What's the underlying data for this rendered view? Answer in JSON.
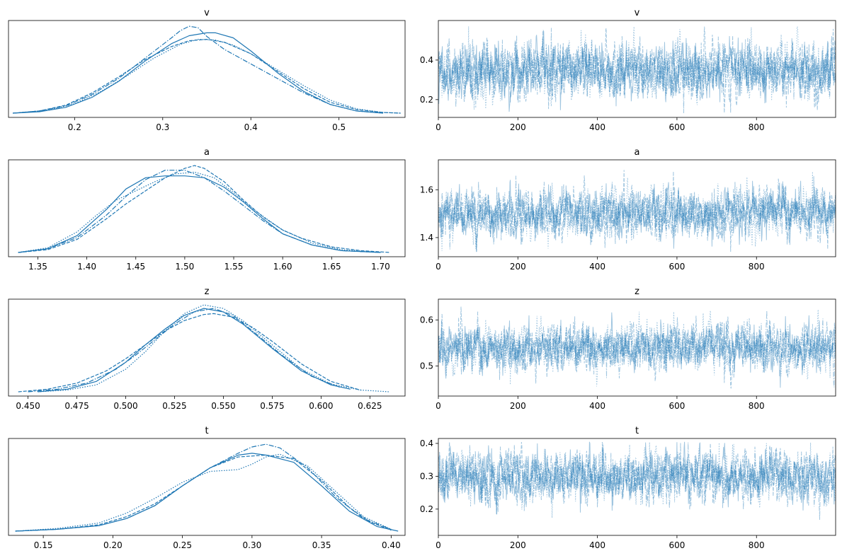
{
  "chart_data": [
    {
      "type": "line",
      "kind": "density",
      "title": "v",
      "xlim": [
        0.125,
        0.575
      ],
      "xticks": [
        "0.2",
        "0.3",
        "0.4",
        "0.5"
      ],
      "yticks_visible": false,
      "color": "#1f77b4",
      "series": [
        {
          "name": "",
          "linestyle": "solid",
          "x": [
            0.13,
            0.16,
            0.19,
            0.22,
            0.25,
            0.28,
            0.31,
            0.33,
            0.35,
            0.36,
            0.38,
            0.4,
            0.43,
            0.46,
            0.49,
            0.52,
            0.55
          ],
          "y": [
            0.0,
            0.2,
            0.8,
            2.2,
            4.4,
            7.2,
            9.6,
            10.7,
            11.1,
            11.1,
            10.4,
            8.6,
            5.6,
            3.0,
            1.2,
            0.3,
            0.0
          ]
        },
        {
          "name": "",
          "linestyle": "dashed",
          "x": [
            0.13,
            0.16,
            0.19,
            0.22,
            0.25,
            0.28,
            0.31,
            0.33,
            0.35,
            0.37,
            0.4,
            0.43,
            0.46,
            0.49,
            0.52,
            0.55,
            0.57
          ],
          "y": [
            0.0,
            0.3,
            1.1,
            2.8,
            5.0,
            7.4,
            9.2,
            10.0,
            10.2,
            9.8,
            8.2,
            5.8,
            3.4,
            1.5,
            0.5,
            0.1,
            0.0
          ]
        },
        {
          "name": "",
          "linestyle": "dashdot",
          "x": [
            0.13,
            0.16,
            0.19,
            0.22,
            0.25,
            0.28,
            0.31,
            0.32,
            0.33,
            0.34,
            0.35,
            0.37,
            0.4,
            0.43,
            0.46,
            0.49,
            0.52,
            0.55
          ],
          "y": [
            0.0,
            0.3,
            1.0,
            2.6,
            4.8,
            7.6,
            10.4,
            11.4,
            12.0,
            11.8,
            10.6,
            8.8,
            6.8,
            4.8,
            2.8,
            1.2,
            0.3,
            0.0
          ]
        },
        {
          "name": "",
          "linestyle": "dotted",
          "x": [
            0.14,
            0.17,
            0.2,
            0.23,
            0.26,
            0.29,
            0.32,
            0.34,
            0.36,
            0.38,
            0.4,
            0.43,
            0.46,
            0.49,
            0.52,
            0.55,
            0.57
          ],
          "y": [
            0.1,
            0.4,
            1.3,
            3.0,
            5.2,
            7.6,
            9.5,
            10.2,
            10.1,
            9.4,
            8.2,
            6.0,
            3.8,
            1.8,
            0.6,
            0.1,
            0.0
          ]
        }
      ]
    },
    {
      "type": "line",
      "kind": "trace",
      "title": "v",
      "xlim": [
        0,
        999
      ],
      "ylim": [
        0.11,
        0.6
      ],
      "xticks": [
        "0",
        "200",
        "400",
        "600",
        "800"
      ],
      "yticks": [
        "0.2",
        "0.4"
      ],
      "color": "#1f77b4",
      "mean": 0.345,
      "sd": 0.07,
      "min": 0.13,
      "max": 0.57,
      "series": [
        {
          "name": "",
          "linestyle": "solid"
        },
        {
          "name": "",
          "linestyle": "dashed"
        },
        {
          "name": "",
          "linestyle": "dashdot"
        },
        {
          "name": "",
          "linestyle": "dotted"
        }
      ]
    },
    {
      "type": "line",
      "kind": "density",
      "title": "a",
      "xlim": [
        1.32,
        1.725
      ],
      "xticks": [
        "1.35",
        "1.40",
        "1.45",
        "1.50",
        "1.55",
        "1.60",
        "1.65",
        "1.70"
      ],
      "yticks_visible": false,
      "color": "#1f77b4",
      "series": [
        {
          "name": "",
          "linestyle": "solid",
          "x": [
            1.33,
            1.36,
            1.39,
            1.42,
            1.44,
            1.46,
            1.48,
            1.5,
            1.52,
            1.54,
            1.56,
            1.58,
            1.6,
            1.63,
            1.66,
            1.7
          ],
          "y": [
            0.0,
            0.4,
            1.8,
            4.6,
            6.8,
            8.0,
            8.2,
            8.2,
            8.0,
            7.0,
            5.4,
            3.6,
            2.0,
            0.8,
            0.2,
            0.0
          ]
        },
        {
          "name": "",
          "linestyle": "dashed",
          "x": [
            1.33,
            1.36,
            1.39,
            1.42,
            1.44,
            1.46,
            1.48,
            1.5,
            1.51,
            1.52,
            1.54,
            1.56,
            1.58,
            1.6,
            1.62,
            1.65,
            1.68,
            1.71
          ],
          "y": [
            0.0,
            0.3,
            1.4,
            3.6,
            5.2,
            6.6,
            8.0,
            9.0,
            9.3,
            9.0,
            7.6,
            5.6,
            3.8,
            2.4,
            1.5,
            0.6,
            0.2,
            0.0
          ]
        },
        {
          "name": "",
          "linestyle": "dashdot",
          "x": [
            1.33,
            1.36,
            1.39,
            1.42,
            1.44,
            1.46,
            1.48,
            1.5,
            1.52,
            1.54,
            1.56,
            1.58,
            1.6,
            1.63,
            1.66,
            1.7
          ],
          "y": [
            0.0,
            0.4,
            1.6,
            4.0,
            6.0,
            7.8,
            8.8,
            8.8,
            8.0,
            6.6,
            5.0,
            3.4,
            2.0,
            0.8,
            0.2,
            0.0
          ]
        },
        {
          "name": "",
          "linestyle": "dotted",
          "x": [
            1.33,
            1.36,
            1.39,
            1.41,
            1.43,
            1.45,
            1.47,
            1.49,
            1.51,
            1.53,
            1.55,
            1.57,
            1.6,
            1.63,
            1.66,
            1.7
          ],
          "y": [
            0.0,
            0.5,
            2.2,
            4.0,
            5.6,
            6.6,
            7.6,
            8.4,
            8.6,
            8.0,
            6.4,
            4.6,
            2.4,
            1.0,
            0.3,
            0.0
          ]
        }
      ]
    },
    {
      "type": "line",
      "kind": "trace",
      "title": "a",
      "xlim": [
        0,
        999
      ],
      "ylim": [
        1.32,
        1.725
      ],
      "xticks": [
        "0",
        "200",
        "400",
        "600",
        "800"
      ],
      "yticks": [
        "1.4",
        "1.6"
      ],
      "color": "#1f77b4",
      "mean": 1.5,
      "sd": 0.05,
      "min": 1.34,
      "max": 1.71,
      "series": [
        {
          "name": "",
          "linestyle": "solid"
        },
        {
          "name": "",
          "linestyle": "dashed"
        },
        {
          "name": "",
          "linestyle": "dashdot"
        },
        {
          "name": "",
          "linestyle": "dotted"
        }
      ]
    },
    {
      "type": "line",
      "kind": "density",
      "title": "z",
      "xlim": [
        0.44,
        0.643
      ],
      "xticks": [
        "0.450",
        "0.475",
        "0.500",
        "0.525",
        "0.550",
        "0.575",
        "0.600",
        "0.625"
      ],
      "yticks_visible": false,
      "color": "#1f77b4",
      "series": [
        {
          "name": "",
          "linestyle": "solid",
          "x": [
            0.455,
            0.47,
            0.485,
            0.5,
            0.51,
            0.52,
            0.53,
            0.54,
            0.55,
            0.56,
            0.575,
            0.59,
            0.605,
            0.615
          ],
          "y": [
            0.0,
            0.3,
            1.2,
            3.4,
            5.4,
            7.2,
            8.8,
            9.6,
            9.2,
            7.8,
            5.0,
            2.4,
            0.8,
            0.3
          ]
        },
        {
          "name": "",
          "linestyle": "dashed",
          "x": [
            0.445,
            0.46,
            0.475,
            0.49,
            0.5,
            0.51,
            0.52,
            0.53,
            0.54,
            0.545,
            0.555,
            0.565,
            0.575,
            0.59,
            0.605,
            0.62
          ],
          "y": [
            0.0,
            0.3,
            1.0,
            2.4,
            3.8,
            5.4,
            7.0,
            8.2,
            8.9,
            9.0,
            8.6,
            7.4,
            5.8,
            3.2,
            1.2,
            0.2
          ]
        },
        {
          "name": "",
          "linestyle": "dashdot",
          "x": [
            0.45,
            0.465,
            0.48,
            0.495,
            0.505,
            0.515,
            0.525,
            0.535,
            0.545,
            0.555,
            0.565,
            0.58,
            0.595,
            0.61
          ],
          "y": [
            0.0,
            0.3,
            1.0,
            2.6,
            4.2,
            6.0,
            7.8,
            9.2,
            9.6,
            8.8,
            7.0,
            4.2,
            1.8,
            0.5
          ]
        },
        {
          "name": "",
          "linestyle": "dotted",
          "x": [
            0.455,
            0.47,
            0.485,
            0.5,
            0.51,
            0.52,
            0.53,
            0.54,
            0.55,
            0.56,
            0.575,
            0.59,
            0.605,
            0.62,
            0.635
          ],
          "y": [
            0.0,
            0.2,
            0.8,
            2.6,
            4.6,
            7.0,
            9.0,
            10.0,
            9.6,
            8.2,
            5.4,
            2.6,
            0.9,
            0.2,
            0.0
          ]
        }
      ]
    },
    {
      "type": "line",
      "kind": "trace",
      "title": "z",
      "xlim": [
        0,
        999
      ],
      "ylim": [
        0.435,
        0.645
      ],
      "xticks": [
        "0",
        "200",
        "400",
        "600",
        "800"
      ],
      "yticks": [
        "0.5",
        "0.6"
      ],
      "color": "#1f77b4",
      "mean": 0.54,
      "sd": 0.025,
      "min": 0.45,
      "max": 0.63,
      "series": [
        {
          "name": "",
          "linestyle": "solid"
        },
        {
          "name": "",
          "linestyle": "dashed"
        },
        {
          "name": "",
          "linestyle": "dashdot"
        },
        {
          "name": "",
          "linestyle": "dotted"
        }
      ]
    },
    {
      "type": "line",
      "kind": "density",
      "title": "t",
      "xlim": [
        0.125,
        0.41
      ],
      "xticks": [
        "0.15",
        "0.20",
        "0.25",
        "0.30",
        "0.35",
        "0.40"
      ],
      "yticks_visible": false,
      "color": "#1f77b4",
      "series": [
        {
          "name": "",
          "linestyle": "solid",
          "x": [
            0.13,
            0.16,
            0.19,
            0.21,
            0.23,
            0.25,
            0.27,
            0.29,
            0.3,
            0.31,
            0.33,
            0.35,
            0.37,
            0.39,
            0.405
          ],
          "y": [
            0.0,
            0.2,
            0.6,
            1.4,
            2.8,
            5.0,
            7.0,
            8.4,
            8.6,
            8.4,
            7.6,
            5.0,
            2.2,
            0.5,
            0.0
          ]
        },
        {
          "name": "",
          "linestyle": "dashed",
          "x": [
            0.13,
            0.16,
            0.19,
            0.21,
            0.23,
            0.25,
            0.27,
            0.29,
            0.31,
            0.33,
            0.35,
            0.37,
            0.385,
            0.4
          ],
          "y": [
            0.0,
            0.2,
            0.7,
            1.6,
            3.0,
            5.0,
            7.0,
            8.2,
            8.4,
            8.0,
            5.6,
            2.6,
            1.0,
            0.1
          ]
        },
        {
          "name": "",
          "linestyle": "dashdot",
          "x": [
            0.13,
            0.16,
            0.19,
            0.21,
            0.23,
            0.25,
            0.27,
            0.29,
            0.3,
            0.31,
            0.32,
            0.34,
            0.36,
            0.38,
            0.4
          ],
          "y": [
            0.0,
            0.2,
            0.6,
            1.4,
            2.8,
            5.0,
            7.0,
            8.6,
            9.3,
            9.6,
            9.2,
            7.0,
            3.8,
            1.4,
            0.2
          ]
        },
        {
          "name": "",
          "linestyle": "dotted",
          "x": [
            0.13,
            0.16,
            0.19,
            0.21,
            0.23,
            0.25,
            0.27,
            0.28,
            0.29,
            0.3,
            0.31,
            0.32,
            0.34,
            0.36,
            0.38,
            0.4
          ],
          "y": [
            0.0,
            0.3,
            0.9,
            2.0,
            3.6,
            5.4,
            6.6,
            6.7,
            6.8,
            7.4,
            8.2,
            8.5,
            7.2,
            4.4,
            1.6,
            0.2
          ]
        }
      ]
    },
    {
      "type": "line",
      "kind": "trace",
      "title": "t",
      "xlim": [
        0,
        999
      ],
      "ylim": [
        0.12,
        0.415
      ],
      "xticks": [
        "0",
        "200",
        "400",
        "600",
        "800"
      ],
      "yticks": [
        "0.2",
        "0.3",
        "0.4"
      ],
      "color": "#1f77b4",
      "mean": 0.3,
      "sd": 0.038,
      "min": 0.13,
      "max": 0.405,
      "series": [
        {
          "name": "",
          "linestyle": "solid"
        },
        {
          "name": "",
          "linestyle": "dashed"
        },
        {
          "name": "",
          "linestyle": "dashdot"
        },
        {
          "name": "",
          "linestyle": "dotted"
        }
      ]
    }
  ]
}
